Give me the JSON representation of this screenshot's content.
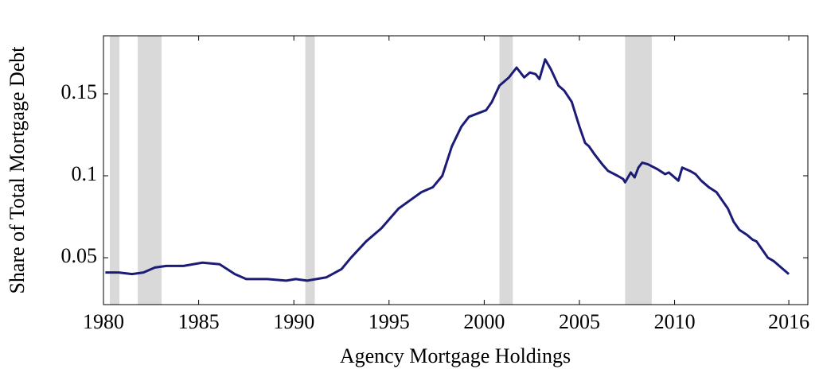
{
  "chart_data": {
    "type": "line",
    "xlabel": "Agency Mortgage Holdings",
    "ylabel": "Share of Total Mortgage Debt",
    "xlim": [
      1980,
      2017
    ],
    "ylim": [
      0.0214,
      0.1854
    ],
    "xticks": [
      1980,
      1985,
      1990,
      1995,
      2000,
      2005,
      2010,
      2016
    ],
    "yticks": [
      0.05,
      0.1,
      0.15
    ],
    "recessions": [
      [
        1980.33,
        1980.84
      ],
      [
        1981.8,
        1983.05
      ],
      [
        1990.6,
        1991.1
      ],
      [
        2000.8,
        2001.5
      ],
      [
        2007.4,
        2008.8
      ]
    ],
    "recession_color": "#d9d9d9",
    "series": [
      {
        "color": "#1c1c78",
        "x": [
          1980.1,
          1980.8,
          1981.5,
          1982.1,
          1982.7,
          1983.3,
          1984.2,
          1985.2,
          1986.1,
          1986.9,
          1987.5,
          1988.6,
          1989.6,
          1990.1,
          1990.7,
          1991.7,
          1992.5,
          1993.0,
          1993.8,
          1994.6,
          1995.5,
          1996.1,
          1996.7,
          1997.3,
          1997.8,
          1998.3,
          1998.8,
          1999.2,
          2000.1,
          2000.4,
          2000.8,
          2001.3,
          2001.7,
          2002.1,
          2002.4,
          2002.7,
          2002.9,
          2003.2,
          2003.5,
          2003.9,
          2004.2,
          2004.6,
          2005.0,
          2005.3,
          2005.5,
          2005.8,
          2006.2,
          2006.5,
          2007.0,
          2007.3,
          2007.4,
          2007.7,
          2007.9,
          2008.1,
          2008.3,
          2008.6,
          2009.1,
          2009.5,
          2009.7,
          2010.0,
          2010.2,
          2010.4,
          2010.8,
          2011.1,
          2011.4,
          2011.8,
          2012.2,
          2012.5,
          2012.8,
          2013.1,
          2013.4,
          2013.8,
          2014.1,
          2014.3,
          2014.6,
          2014.9,
          2015.2,
          2015.5,
          2015.7,
          2016.0
        ],
        "values": [
          0.041,
          0.041,
          0.04,
          0.041,
          0.044,
          0.045,
          0.045,
          0.047,
          0.046,
          0.04,
          0.037,
          0.037,
          0.036,
          0.037,
          0.036,
          0.038,
          0.043,
          0.05,
          0.06,
          0.068,
          0.08,
          0.085,
          0.09,
          0.093,
          0.1,
          0.118,
          0.13,
          0.136,
          0.14,
          0.145,
          0.155,
          0.16,
          0.166,
          0.16,
          0.163,
          0.162,
          0.159,
          0.171,
          0.165,
          0.155,
          0.152,
          0.145,
          0.13,
          0.12,
          0.118,
          0.113,
          0.107,
          0.103,
          0.1,
          0.098,
          0.096,
          0.102,
          0.099,
          0.105,
          0.108,
          0.107,
          0.104,
          0.101,
          0.102,
          0.099,
          0.097,
          0.105,
          0.103,
          0.101,
          0.097,
          0.093,
          0.09,
          0.085,
          0.08,
          0.072,
          0.067,
          0.064,
          0.061,
          0.06,
          0.055,
          0.05,
          0.048,
          0.045,
          0.043,
          0.04
        ]
      }
    ]
  }
}
